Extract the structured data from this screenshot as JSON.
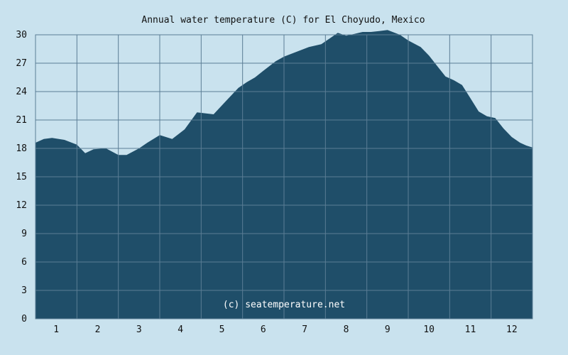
{
  "chart_data": {
    "type": "area",
    "title": "Annual water temperature (C) for El Choyudo, Mexico",
    "credit": "(c) seatemperature.net",
    "xlabel": "",
    "ylabel": "",
    "categories": [
      "1",
      "2",
      "3",
      "4",
      "5",
      "6",
      "7",
      "8",
      "9",
      "10",
      "11",
      "12"
    ],
    "x_range": [
      0.5,
      12.5
    ],
    "ylim": [
      0,
      30
    ],
    "y_ticks": [
      "0",
      "3",
      "6",
      "9",
      "12",
      "15",
      "18",
      "21",
      "24",
      "27",
      "30"
    ],
    "grid": true,
    "legend": "none",
    "colors": {
      "fill": "#1f4e69",
      "background": "#c9e2ee",
      "grid": "#5b7d95"
    },
    "series": [
      {
        "x": [
          0.5,
          0.7,
          0.9,
          1.2,
          1.5,
          1.7,
          1.9,
          2.2,
          2.5,
          2.7,
          3.0,
          3.2,
          3.5,
          3.8,
          4.1,
          4.4,
          4.8,
          5.1,
          5.4,
          5.6,
          5.8,
          6.0,
          6.3,
          6.5,
          6.8,
          7.1,
          7.4,
          7.6,
          7.8,
          8.0,
          8.2,
          8.4,
          8.6,
          8.8,
          9.0,
          9.3,
          9.5,
          9.8,
          10.0,
          10.2,
          10.4,
          10.6,
          10.8,
          11.0,
          11.2,
          11.4,
          11.6,
          11.8,
          12.0,
          12.2,
          12.35,
          12.5
        ],
        "y": [
          18.6,
          19.0,
          19.1,
          18.9,
          18.4,
          17.5,
          17.9,
          18.0,
          17.3,
          17.3,
          18.0,
          18.6,
          19.4,
          19.0,
          20.0,
          21.8,
          21.6,
          23.0,
          24.4,
          25.0,
          25.5,
          26.2,
          27.2,
          27.7,
          28.2,
          28.7,
          29.0,
          29.6,
          30.2,
          29.9,
          30.1,
          30.3,
          30.3,
          30.4,
          30.5,
          30.0,
          29.4,
          28.7,
          27.8,
          26.7,
          25.6,
          25.2,
          24.7,
          23.3,
          21.9,
          21.4,
          21.2,
          20.1,
          19.2,
          18.6,
          18.3,
          18.1
        ]
      }
    ]
  }
}
